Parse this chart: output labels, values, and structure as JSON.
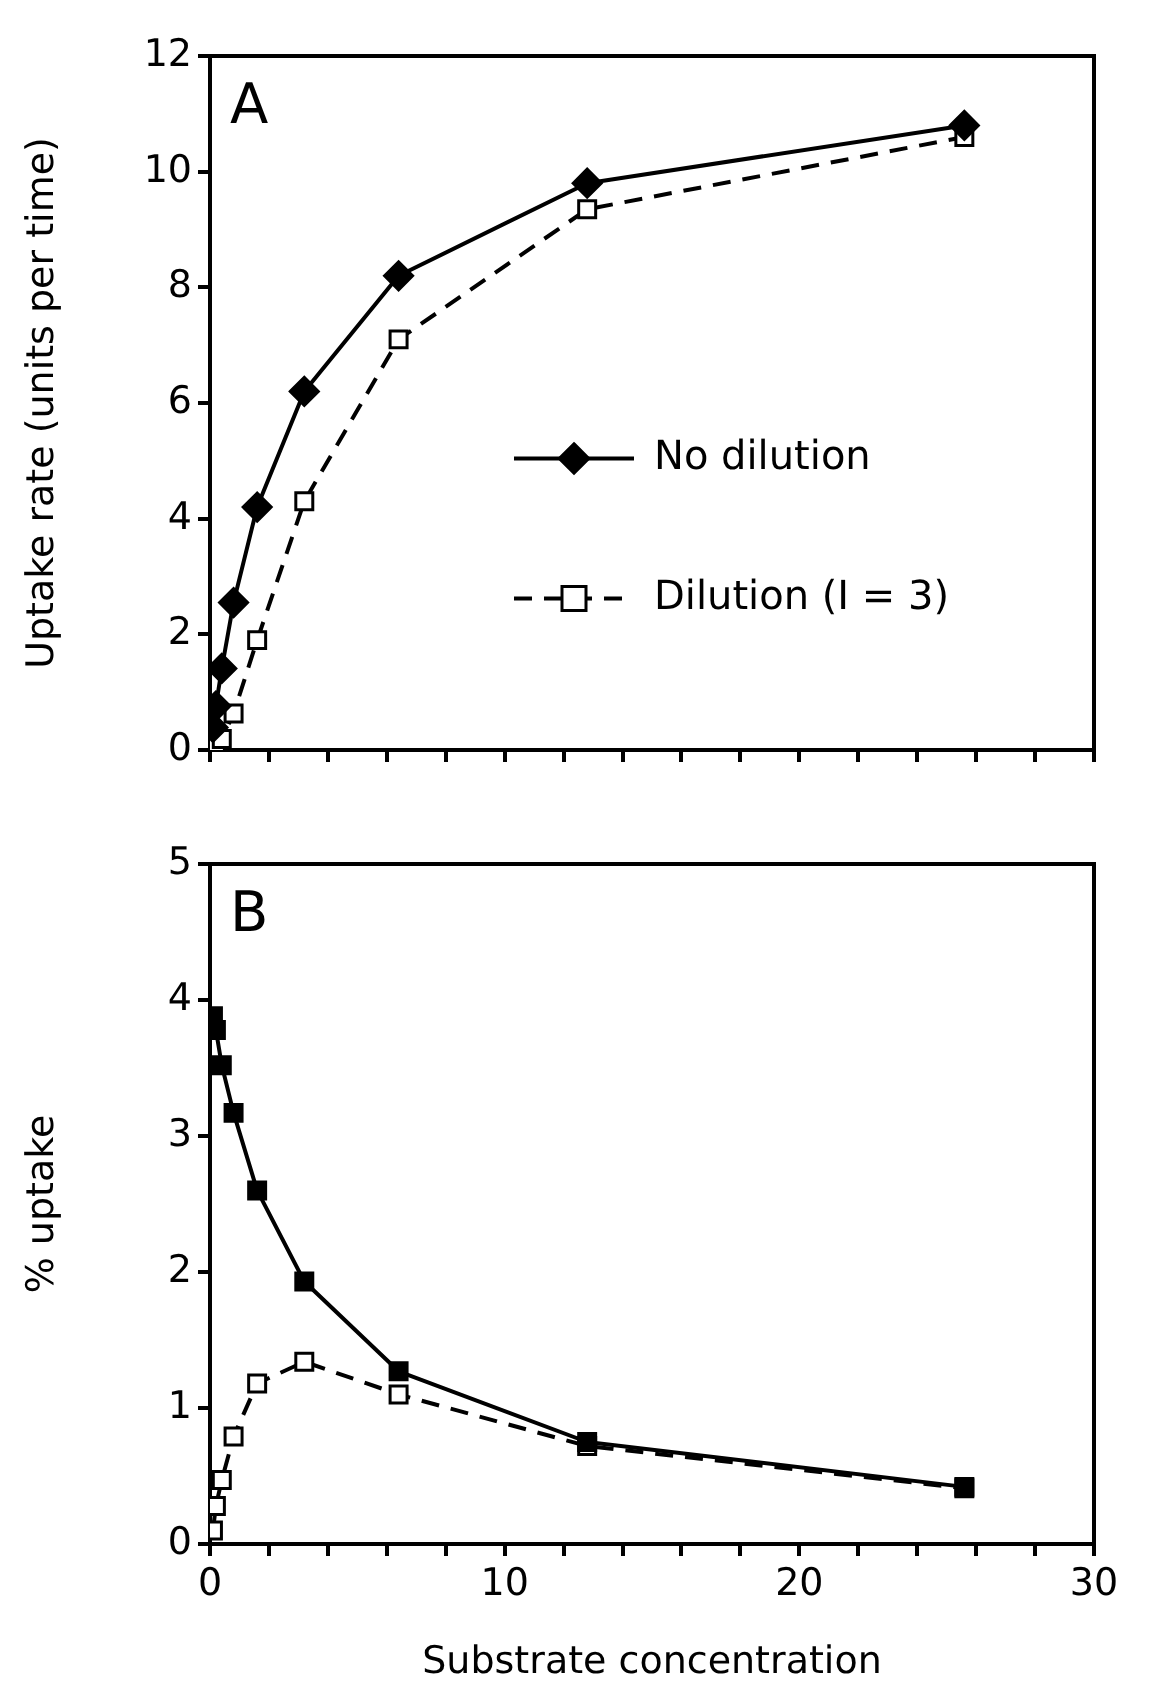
{
  "chart_data": [
    {
      "type": "line",
      "title": "A",
      "ylabel": "Uptake rate (units per time)",
      "x": [
        0.1,
        0.2,
        0.4,
        0.8,
        1.6,
        3.2,
        6.4,
        12.8,
        25.6
      ],
      "xlim": [
        0,
        30
      ],
      "xticks": [
        0,
        {
          "value": 2,
          "label": null
        },
        {
          "value": 4,
          "label": null
        },
        {
          "value": 6,
          "label": null
        },
        {
          "value": 8,
          "label": null
        },
        10,
        {
          "value": 12,
          "label": null
        },
        {
          "value": 14,
          "label": null
        },
        {
          "value": 16,
          "label": null
        },
        {
          "value": 18,
          "label": null
        },
        20,
        {
          "value": 22,
          "label": null
        },
        {
          "value": 24,
          "label": null
        },
        {
          "value": 26,
          "label": null
        },
        {
          "value": 28,
          "label": null
        },
        30
      ],
      "ylim": [
        0,
        12
      ],
      "yticks": [
        0,
        2,
        4,
        6,
        8,
        10,
        12
      ],
      "tick_labels": "y",
      "grid": false,
      "legend": "right",
      "series": [
        {
          "name": "No dilution",
          "color": "#000000",
          "marker": "diamond",
          "line_style": "solid",
          "values": [
            0.39,
            0.76,
            1.41,
            2.55,
            4.2,
            6.2,
            8.2,
            9.8,
            10.8
          ]
        },
        {
          "name": "Dilution (I = 3)",
          "color": "#000000",
          "marker": "square",
          "line_style": "dashed",
          "values": [
            0.01,
            0.06,
            0.19,
            0.63,
            1.9,
            4.3,
            7.1,
            9.35,
            10.6
          ]
        }
      ]
    },
    {
      "type": "line",
      "title": "B",
      "xlabel": "Substrate concentration",
      "ylabel": "% uptake",
      "x": [
        0.1,
        0.2,
        0.4,
        0.8,
        1.6,
        3.2,
        6.4,
        12.8,
        25.6
      ],
      "xlim": [
        0,
        30
      ],
      "xticks": [
        0,
        {
          "value": 2,
          "label": null
        },
        {
          "value": 4,
          "label": null
        },
        {
          "value": 6,
          "label": null
        },
        {
          "value": 8,
          "label": null
        },
        10,
        {
          "value": 12,
          "label": null
        },
        {
          "value": 14,
          "label": null
        },
        {
          "value": 16,
          "label": null
        },
        {
          "value": 18,
          "label": null
        },
        20,
        {
          "value": 22,
          "label": null
        },
        {
          "value": 24,
          "label": null
        },
        {
          "value": 26,
          "label": null
        },
        {
          "value": 28,
          "label": null
        },
        30
      ],
      "ylim": [
        0,
        5
      ],
      "yticks": [
        0,
        1,
        2,
        3,
        4,
        5
      ],
      "grid": false,
      "legend": false,
      "series": [
        {
          "color": "#000000",
          "marker": "square",
          "line_style": "solid",
          "values": [
            3.88,
            3.78,
            3.52,
            3.17,
            2.6,
            1.93,
            1.27,
            0.75,
            0.42
          ]
        },
        {
          "color": "#000000",
          "marker": "square",
          "line_style": "dashed",
          "values": [
            0.1,
            0.28,
            0.47,
            0.79,
            1.18,
            1.34,
            1.1,
            0.72,
            0.41
          ]
        }
      ]
    }
  ]
}
